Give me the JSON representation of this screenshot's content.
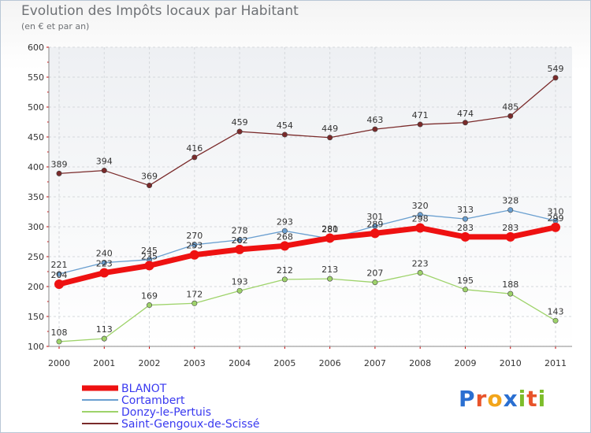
{
  "title": "Evolution des Impôts locaux par Habitant",
  "subtitle": "(en € et par an)",
  "logo": {
    "text": "Proxiti",
    "letters": [
      "P",
      "r",
      "o",
      "x",
      "i",
      "t",
      "i"
    ],
    "colors": [
      "#2a6fd1",
      "#e8542b",
      "#f2a51a",
      "#2a6fd1",
      "#7dbd2a",
      "#e8542b",
      "#7dbd2a"
    ]
  },
  "chart_data": {
    "type": "line",
    "title": "Evolution des Impôts locaux par Habitant",
    "subtitle": "(en € et par an)",
    "xlabel": "",
    "ylabel": "",
    "x": [
      "2000",
      "2001",
      "2002",
      "2003",
      "2004",
      "2005",
      "2006",
      "2007",
      "2008",
      "2009",
      "2010",
      "2011"
    ],
    "ylim": [
      100,
      600
    ],
    "yticks": [
      "100",
      "150",
      "200",
      "250",
      "300",
      "350",
      "400",
      "450",
      "500",
      "550",
      "600"
    ],
    "grid": true,
    "legend_position": "bottom-left",
    "series": [
      {
        "name": "BLANOT",
        "color": "#ee1111",
        "emphasis": true,
        "values": [
          204,
          223,
          235,
          253,
          262,
          268,
          281,
          289,
          298,
          283,
          283,
          299
        ],
        "labels": [
          "204",
          "223",
          "235",
          "253",
          "262",
          "268",
          "281",
          "289",
          "298",
          "283",
          "283",
          "299"
        ]
      },
      {
        "name": "Cortambert",
        "color": "#6a9fd0",
        "emphasis": false,
        "values": [
          221,
          240,
          245,
          270,
          278,
          293,
          280,
          301,
          320,
          313,
          328,
          310
        ],
        "labels": [
          "221",
          "240",
          "245",
          "270",
          "278",
          "293",
          "280",
          "301",
          "320",
          "313",
          "328",
          "310"
        ]
      },
      {
        "name": "Donzy-le-Pertuis",
        "color": "#9ed36a",
        "emphasis": false,
        "values": [
          108,
          113,
          169,
          172,
          193,
          212,
          213,
          207,
          223,
          195,
          188,
          143
        ],
        "labels": [
          "108",
          "113",
          "169",
          "172",
          "193",
          "212",
          "213",
          "207",
          "223",
          "195",
          "188",
          "143"
        ]
      },
      {
        "name": "Saint-Gengoux-de-Scissé",
        "color": "#7a2a2a",
        "emphasis": false,
        "values": [
          389,
          394,
          369,
          416,
          459,
          454,
          449,
          463,
          471,
          474,
          485,
          549
        ],
        "labels": [
          "389",
          "394",
          "369",
          "416",
          "459",
          "454",
          "449",
          "463",
          "471",
          "474",
          "485",
          "549"
        ]
      }
    ]
  }
}
